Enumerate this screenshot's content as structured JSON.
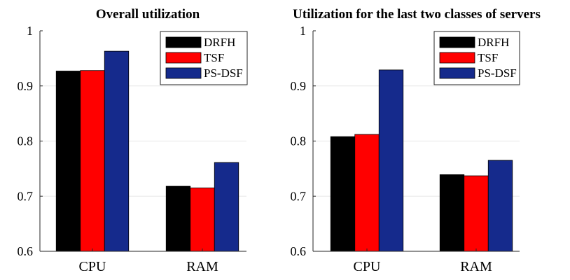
{
  "chart_data": [
    {
      "type": "bar",
      "title": "Overall utilization",
      "categories": [
        "CPU",
        "RAM"
      ],
      "series": [
        {
          "name": "DRFH",
          "color": "#000000",
          "values": [
            0.927,
            0.718
          ]
        },
        {
          "name": "TSF",
          "color": "#ff0000",
          "values": [
            0.928,
            0.715
          ]
        },
        {
          "name": "PS-DSF",
          "color": "#152a8c",
          "values": [
            0.963,
            0.761
          ]
        }
      ],
      "ylim": [
        0.6,
        1
      ],
      "yticks": [
        0.6,
        0.7,
        0.8,
        0.9,
        1
      ],
      "ytick_labels": [
        "0.6",
        "0.7",
        "0.8",
        "0.9",
        "1"
      ],
      "grid": true,
      "legend": "top-right"
    },
    {
      "type": "bar",
      "title": "Utilization for the last two classes of servers",
      "categories": [
        "CPU",
        "RAM"
      ],
      "series": [
        {
          "name": "DRFH",
          "color": "#000000",
          "values": [
            0.808,
            0.739
          ]
        },
        {
          "name": "TSF",
          "color": "#ff0000",
          "values": [
            0.812,
            0.737
          ]
        },
        {
          "name": "PS-DSF",
          "color": "#152a8c",
          "values": [
            0.929,
            0.765
          ]
        }
      ],
      "ylim": [
        0.6,
        1
      ],
      "yticks": [
        0.6,
        0.7,
        0.8,
        0.9,
        1
      ],
      "ytick_labels": [
        "0.6",
        "0.7",
        "0.8",
        "0.9",
        "1"
      ],
      "grid": true,
      "legend": "top-right"
    }
  ]
}
